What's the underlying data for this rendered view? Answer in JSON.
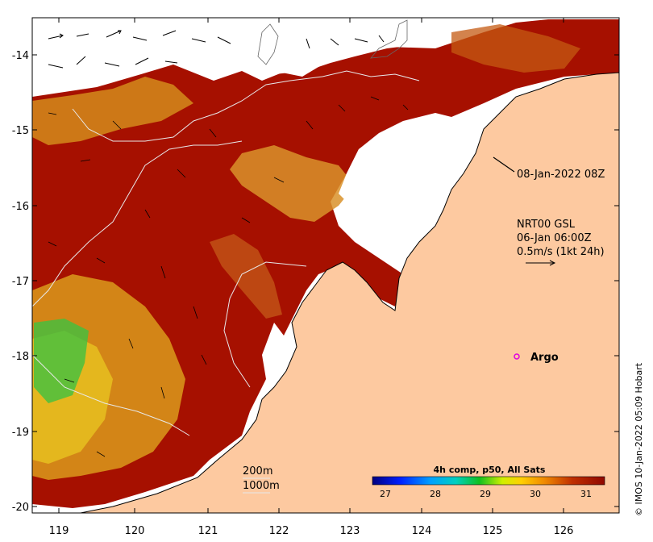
{
  "map": {
    "x_ticks": [
      "119",
      "120",
      "121",
      "122",
      "123",
      "124",
      "125",
      "126"
    ],
    "y_ticks": [
      "-14",
      "-15",
      "-16",
      "-17",
      "-18",
      "-19",
      "-20"
    ],
    "obs_time": "08-Jan-2022 08Z",
    "current_model": "NRT00 GSL",
    "current_time": "06-Jan 06:00Z",
    "current_scale": "0.5m/s (1kt 24h)",
    "argo_label": "Argo",
    "contour_200": "200m",
    "contour_1000": "1000m",
    "colorbar": {
      "title": "4h comp, p50, All Sats",
      "labels": [
        "27",
        "28",
        "29",
        "30",
        "31"
      ]
    },
    "credit": "© IMOS 10-Jan-2022 05:09 Hobart",
    "colors": {
      "land": "#fdc9a0",
      "sst_hot": "#a61000",
      "sst_warm": "#d2841a",
      "argo": "#e000e0"
    }
  }
}
